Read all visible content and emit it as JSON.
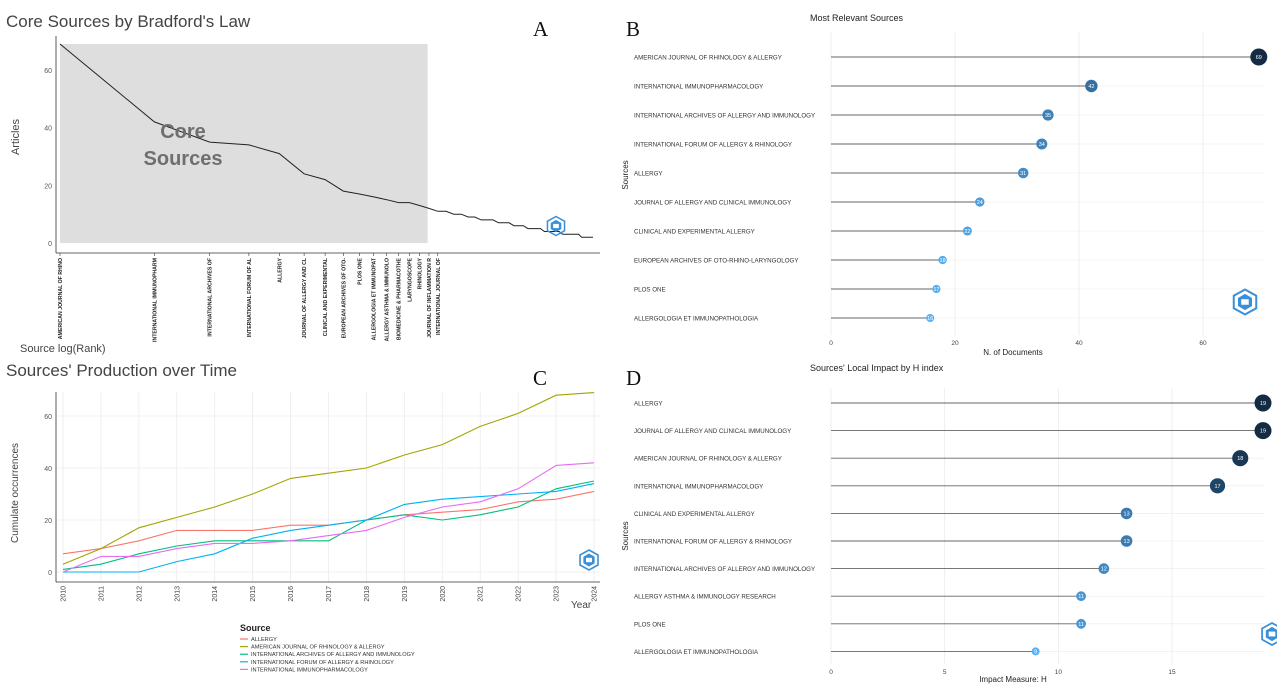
{
  "panel_letters": {
    "a": "A",
    "b": "B",
    "c": "C",
    "d": "D"
  },
  "colors": {
    "core_area": "#dedede",
    "line": "#222222",
    "dot_dark": "#132b43",
    "dot_light": "#56b1f7",
    "logo": "#3a8fd8",
    "seg": "#666666",
    "grid": "#ebebeb",
    "series": [
      "#f8766d",
      "#a3a500",
      "#00bf7d",
      "#00b0f6",
      "#e76bf3"
    ]
  },
  "chart_data": [
    {
      "id": "A",
      "type": "line",
      "title": "Core Sources by Bradford's Law",
      "xlabel": "Source log(Rank)",
      "ylabel": "Articles",
      "yticks": [
        0,
        20,
        40,
        60
      ],
      "ylim": [
        0,
        69
      ],
      "core_label": [
        "Core",
        "Sources"
      ],
      "core_sources_count": 13,
      "total_sources_plotted": 50,
      "x_tick_labels": [
        "AMERICAN JOURNAL OF RHINO",
        "INTERNATIONAL IMMUNOPHARM",
        "INTERNATIONAL ARCHIVES OF",
        "INTERNATIONAL FORUM OF AL",
        "ALLERGY",
        "JOURNAL OF ALLERGY AND CL",
        "CLINICAL AND EXPERIMENTAL",
        "EUROPEAN ARCHIVES OF OTO-",
        "PLOS ONE",
        "ALLERGOLOGIA ET IMMUNOPAT",
        "ALLERGY ASTHMA & IMMUNOLO",
        "BIOMEDICINE & PHARMACOTHE",
        "LARYNGOSCOPE",
        "RHINOLOGY",
        "JOURNAL OF INFLAMMATION R",
        "INTERNATIONAL JOURNAL OF"
      ],
      "ranks": [
        1,
        2,
        3,
        4,
        5,
        6,
        7,
        8,
        9,
        10,
        11,
        12,
        13,
        14,
        15,
        16,
        17,
        18,
        19,
        20,
        21,
        22,
        23,
        24,
        25,
        26,
        27,
        28,
        29,
        30,
        31,
        32,
        33,
        34,
        35,
        36,
        37,
        38,
        39,
        40,
        41,
        42,
        43,
        44,
        45,
        46,
        47,
        48,
        49,
        50
      ],
      "values": [
        69,
        42,
        35,
        34,
        31,
        24,
        22,
        18,
        17,
        16,
        15,
        14,
        14,
        13,
        12,
        11,
        11,
        10,
        10,
        9,
        9,
        8,
        8,
        8,
        7,
        7,
        7,
        6,
        6,
        6,
        5,
        5,
        5,
        5,
        4,
        4,
        4,
        4,
        4,
        3,
        3,
        3,
        3,
        3,
        3,
        2,
        2,
        2,
        2,
        2
      ]
    },
    {
      "id": "B",
      "type": "lollipop",
      "title": "Most Relevant Sources",
      "xlabel": "N. of Documents",
      "ylabel": "Sources",
      "xticks": [
        0,
        20,
        40,
        60
      ],
      "xlim": [
        0,
        70
      ],
      "categories": [
        "AMERICAN JOURNAL OF RHINOLOGY & ALLERGY",
        "INTERNATIONAL IMMUNOPHARMACOLOGY",
        "INTERNATIONAL ARCHIVES OF ALLERGY AND IMMUNOLOGY",
        "INTERNATIONAL FORUM OF ALLERGY & RHINOLOGY",
        "ALLERGY",
        "JOURNAL OF ALLERGY AND CLINICAL IMMUNOLOGY",
        "CLINICAL AND EXPERIMENTAL ALLERGY",
        "EUROPEAN ARCHIVES OF OTO-RHINO-LARYNGOLOGY",
        "PLOS ONE",
        "ALLERGOLOGIA ET IMMUNOPATHOLOGIA"
      ],
      "values": [
        69,
        42,
        35,
        34,
        31,
        24,
        22,
        18,
        17,
        16
      ]
    },
    {
      "id": "C",
      "type": "line",
      "title": "Sources' Production over Time",
      "xlabel": "Year",
      "ylabel": "Cumulate occurrences",
      "yticks": [
        0,
        20,
        40,
        60
      ],
      "ylim": [
        0,
        72
      ],
      "x": [
        2010,
        2011,
        2012,
        2013,
        2014,
        2015,
        2016,
        2017,
        2018,
        2019,
        2020,
        2021,
        2022,
        2023,
        2024
      ],
      "legend_title": "Source",
      "series": [
        {
          "name": "ALLERGY",
          "values": [
            7,
            9,
            12,
            16,
            16,
            16,
            18,
            18,
            20,
            22,
            23,
            24,
            27,
            28,
            31
          ]
        },
        {
          "name": "AMERICAN JOURNAL OF RHINOLOGY & ALLERGY",
          "values": [
            3,
            9,
            17,
            21,
            25,
            30,
            36,
            38,
            40,
            45,
            49,
            56,
            61,
            68,
            69
          ]
        },
        {
          "name": "INTERNATIONAL ARCHIVES OF ALLERGY AND IMMUNOLOGY",
          "values": [
            1,
            3,
            7,
            10,
            12,
            12,
            12,
            12,
            20,
            22,
            20,
            22,
            25,
            32,
            35
          ]
        },
        {
          "name": "INTERNATIONAL FORUM OF ALLERGY & RHINOLOGY",
          "values": [
            0,
            0,
            0,
            4,
            7,
            13,
            16,
            18,
            20,
            26,
            28,
            29,
            30,
            31,
            34
          ]
        },
        {
          "name": "INTERNATIONAL IMMUNOPHARMACOLOGY",
          "values": [
            0,
            6,
            6,
            9,
            11,
            11,
            12,
            14,
            16,
            21,
            25,
            27,
            32,
            41,
            42
          ]
        }
      ]
    },
    {
      "id": "D",
      "type": "lollipop",
      "title": "Sources' Local Impact by H index",
      "xlabel": "Impact Measure: H",
      "ylabel": "Sources",
      "xticks": [
        0,
        5,
        10,
        15
      ],
      "xlim": [
        0,
        19
      ],
      "categories": [
        "ALLERGY",
        "JOURNAL OF ALLERGY AND CLINICAL IMMUNOLOGY",
        "AMERICAN JOURNAL OF RHINOLOGY & ALLERGY",
        "INTERNATIONAL IMMUNOPHARMACOLOGY",
        "CLINICAL AND EXPERIMENTAL ALLERGY",
        "INTERNATIONAL FORUM OF ALLERGY & RHINOLOGY",
        "INTERNATIONAL ARCHIVES OF ALLERGY AND IMMUNOLOGY",
        "ALLERGY ASTHMA & IMMUNOLOGY RESEARCH",
        "PLOS ONE",
        "ALLERGOLOGIA ET IMMUNOPATHOLOGIA"
      ],
      "values": [
        19,
        19,
        18,
        17,
        13,
        13,
        12,
        11,
        11,
        9
      ]
    }
  ]
}
